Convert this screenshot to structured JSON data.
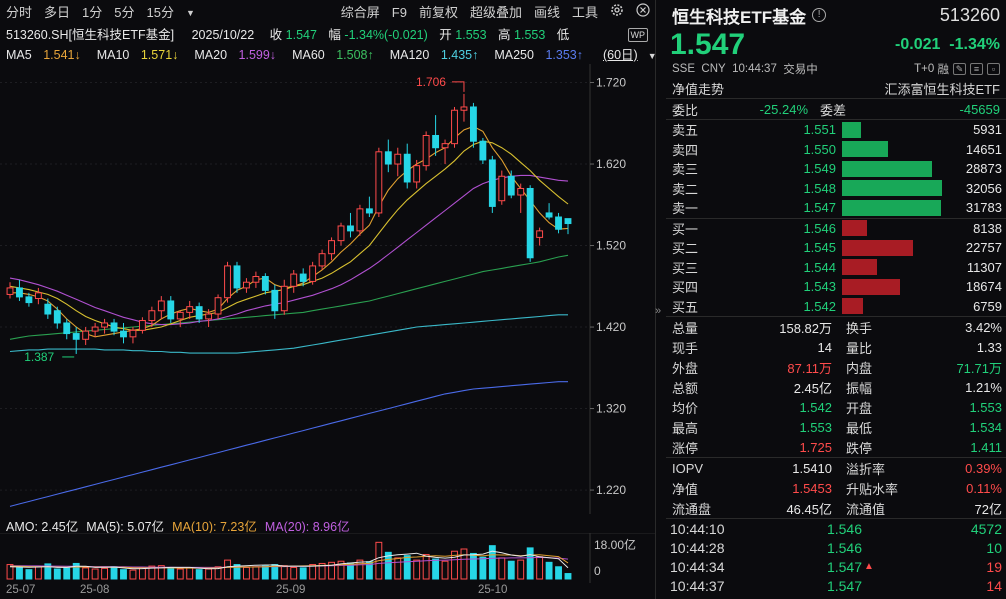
{
  "toolbar": {
    "left": [
      "分时",
      "多日",
      "1分",
      "5分",
      "15分"
    ],
    "dropdown_icon": "triangle-down",
    "right": [
      "综合屏",
      "F9",
      "前复权",
      "超级叠加",
      "画线",
      "工具"
    ],
    "icons": [
      "gear-icon",
      "close-icon"
    ]
  },
  "info": {
    "symbol": "513260.SH[恒生科技ETF基金]",
    "date": "2025/10/22",
    "close_label": "收",
    "close": "1.547",
    "range_label": "幅",
    "range": "-1.34%(-0.021)",
    "open_label": "开",
    "open": "1.553",
    "high_label": "高",
    "high": "1.553",
    "low_label": "低",
    "wp_badge": "WP"
  },
  "ma": [
    {
      "label": "MA5",
      "value": "1.541↓",
      "color": "#e8e8e8",
      "value_color": "#e8a53a"
    },
    {
      "label": "MA10",
      "value": "1.571↓",
      "color": "#e8e8e8",
      "value_color": "#e8d43a"
    },
    {
      "label": "MA20",
      "value": "1.599↓",
      "color": "#e8e8e8",
      "value_color": "#c060e0"
    },
    {
      "label": "MA60",
      "value": "1.508↑",
      "color": "#e8e8e8",
      "value_color": "#3cc060"
    },
    {
      "label": "MA120",
      "value": "1.435↑",
      "color": "#e8e8e8",
      "value_color": "#4ecfe0"
    },
    {
      "label": "MA250",
      "value": "1.353↑",
      "color": "#e8e8e8",
      "value_color": "#5a7cf0"
    }
  ],
  "period_btn": "(60日)",
  "axis": {
    "y_labels": [
      "1.720",
      "1.620",
      "1.520",
      "1.420",
      "1.320",
      "1.220"
    ],
    "y_values": [
      1.72,
      1.62,
      1.52,
      1.42,
      1.32,
      1.22
    ],
    "x_labels": [
      "25-07",
      "25-08",
      "25-09",
      "25-10"
    ],
    "vol_labels": [
      "18.00亿",
      "0"
    ]
  },
  "annotations": {
    "high": "1.706",
    "low": "1.387"
  },
  "amo": [
    {
      "label": "AMO: 2.45亿",
      "color": "#e8e8e8"
    },
    {
      "label": "MA(5): 5.07亿",
      "color": "#e8e8e8"
    },
    {
      "label": "MA(10): 7.23亿",
      "color": "#e8a53a"
    },
    {
      "label": "MA(20): 8.96亿",
      "color": "#c060e0"
    }
  ],
  "chart_data": {
    "type": "candlestick",
    "ohlc": [
      [
        1.46,
        1.475,
        1.455,
        1.468
      ],
      [
        1.468,
        1.478,
        1.452,
        1.457
      ],
      [
        1.457,
        1.462,
        1.445,
        1.45
      ],
      [
        1.455,
        1.468,
        1.448,
        1.462
      ],
      [
        1.448,
        1.455,
        1.43,
        1.436
      ],
      [
        1.44,
        1.445,
        1.418,
        1.425
      ],
      [
        1.425,
        1.43,
        1.405,
        1.412
      ],
      [
        1.412,
        1.42,
        1.387,
        1.405
      ],
      [
        1.405,
        1.42,
        1.398,
        1.415
      ],
      [
        1.415,
        1.425,
        1.408,
        1.42
      ],
      [
        1.42,
        1.43,
        1.412,
        1.425
      ],
      [
        1.425,
        1.43,
        1.41,
        1.415
      ],
      [
        1.415,
        1.425,
        1.4,
        1.408
      ],
      [
        1.408,
        1.42,
        1.4,
        1.416
      ],
      [
        1.416,
        1.432,
        1.412,
        1.428
      ],
      [
        1.428,
        1.445,
        1.42,
        1.44
      ],
      [
        1.44,
        1.458,
        1.43,
        1.452
      ],
      [
        1.452,
        1.458,
        1.425,
        1.43
      ],
      [
        1.43,
        1.44,
        1.42,
        1.438
      ],
      [
        1.438,
        1.452,
        1.43,
        1.445
      ],
      [
        1.445,
        1.45,
        1.425,
        1.43
      ],
      [
        1.43,
        1.442,
        1.42,
        1.436
      ],
      [
        1.436,
        1.46,
        1.43,
        1.456
      ],
      [
        1.456,
        1.5,
        1.45,
        1.495
      ],
      [
        1.495,
        1.5,
        1.462,
        1.468
      ],
      [
        1.468,
        1.48,
        1.462,
        1.475
      ],
      [
        1.475,
        1.488,
        1.468,
        1.482
      ],
      [
        1.482,
        1.486,
        1.46,
        1.465
      ],
      [
        1.465,
        1.472,
        1.43,
        1.44
      ],
      [
        1.44,
        1.478,
        1.435,
        1.47
      ],
      [
        1.47,
        1.49,
        1.462,
        1.485
      ],
      [
        1.485,
        1.492,
        1.47,
        1.476
      ],
      [
        1.476,
        1.5,
        1.472,
        1.495
      ],
      [
        1.495,
        1.515,
        1.49,
        1.51
      ],
      [
        1.51,
        1.53,
        1.502,
        1.526
      ],
      [
        1.526,
        1.548,
        1.52,
        1.544
      ],
      [
        1.544,
        1.56,
        1.53,
        1.538
      ],
      [
        1.538,
        1.57,
        1.532,
        1.565
      ],
      [
        1.565,
        1.58,
        1.555,
        1.56
      ],
      [
        1.56,
        1.64,
        1.555,
        1.635
      ],
      [
        1.635,
        1.65,
        1.61,
        1.62
      ],
      [
        1.62,
        1.64,
        1.605,
        1.632
      ],
      [
        1.632,
        1.645,
        1.59,
        1.598
      ],
      [
        1.598,
        1.625,
        1.59,
        1.618
      ],
      [
        1.618,
        1.66,
        1.612,
        1.655
      ],
      [
        1.655,
        1.68,
        1.63,
        1.64
      ],
      [
        1.64,
        1.65,
        1.62,
        1.645
      ],
      [
        1.645,
        1.69,
        1.64,
        1.686
      ],
      [
        1.686,
        1.706,
        1.672,
        1.69
      ],
      [
        1.69,
        1.695,
        1.64,
        1.648
      ],
      [
        1.648,
        1.652,
        1.62,
        1.625
      ],
      [
        1.625,
        1.63,
        1.56,
        1.568
      ],
      [
        1.575,
        1.612,
        1.57,
        1.605
      ],
      [
        1.605,
        1.612,
        1.578,
        1.582
      ],
      [
        1.582,
        1.596,
        1.56,
        1.59
      ],
      [
        1.59,
        1.594,
        1.5,
        1.505
      ],
      [
        1.53,
        1.542,
        1.52,
        1.538
      ],
      [
        1.56,
        1.572,
        1.552,
        1.555
      ],
      [
        1.555,
        1.56,
        1.535,
        1.54
      ],
      [
        1.553,
        1.553,
        1.534,
        1.547
      ]
    ],
    "ma5": [
      1.462,
      1.462,
      1.46,
      1.457,
      1.452,
      1.442,
      1.43,
      1.42,
      1.412,
      1.408,
      1.41,
      1.412,
      1.414,
      1.416,
      1.418,
      1.422,
      1.43,
      1.436,
      1.44,
      1.443,
      1.44,
      1.438,
      1.442,
      1.455,
      1.465,
      1.47,
      1.478,
      1.48,
      1.472,
      1.468,
      1.47,
      1.474,
      1.482,
      1.49,
      1.5,
      1.512,
      1.522,
      1.534,
      1.545,
      1.568,
      1.588,
      1.602,
      1.612,
      1.62,
      1.626,
      1.634,
      1.64,
      1.652,
      1.662,
      1.666,
      1.66,
      1.64,
      1.625,
      1.605,
      1.59,
      1.575,
      1.56,
      1.548,
      1.54,
      1.541
    ],
    "ma10": [
      1.47,
      1.468,
      1.466,
      1.463,
      1.46,
      1.455,
      1.448,
      1.44,
      1.433,
      1.428,
      1.424,
      1.42,
      1.418,
      1.416,
      1.416,
      1.418,
      1.42,
      1.424,
      1.428,
      1.432,
      1.434,
      1.436,
      1.438,
      1.444,
      1.45,
      1.454,
      1.458,
      1.462,
      1.464,
      1.466,
      1.47,
      1.472,
      1.476,
      1.48,
      1.486,
      1.493,
      1.5,
      1.51,
      1.52,
      1.535,
      1.55,
      1.564,
      1.576,
      1.586,
      1.596,
      1.605,
      1.614,
      1.624,
      1.636,
      1.644,
      1.648,
      1.646,
      1.64,
      1.632,
      1.622,
      1.612,
      1.6,
      1.59,
      1.58,
      1.571
    ],
    "ma20": [
      1.48,
      1.478,
      1.475,
      1.472,
      1.468,
      1.464,
      1.459,
      1.454,
      1.449,
      1.444,
      1.44,
      1.436,
      1.432,
      1.429,
      1.426,
      1.424,
      1.423,
      1.423,
      1.424,
      1.425,
      1.427,
      1.428,
      1.43,
      1.433,
      1.436,
      1.44,
      1.443,
      1.446,
      1.448,
      1.45,
      1.453,
      1.456,
      1.459,
      1.463,
      1.467,
      1.472,
      1.478,
      1.485,
      1.492,
      1.5,
      1.509,
      1.518,
      1.527,
      1.536,
      1.545,
      1.554,
      1.563,
      1.572,
      1.581,
      1.59,
      1.596,
      1.6,
      1.603,
      1.605,
      1.606,
      1.606,
      1.604,
      1.602,
      1.6,
      1.599
    ],
    "ma60": [
      1.405,
      1.407,
      1.409,
      1.41,
      1.411,
      1.412,
      1.413,
      1.414,
      1.415,
      1.416,
      1.417,
      1.418,
      1.419,
      1.42,
      1.421,
      1.422,
      1.423,
      1.424,
      1.425,
      1.426,
      1.427,
      1.428,
      1.429,
      1.43,
      1.431,
      1.432,
      1.433,
      1.434,
      1.435,
      1.436,
      1.437,
      1.438,
      1.44,
      1.442,
      1.444,
      1.446,
      1.448,
      1.45,
      1.452,
      1.455,
      1.458,
      1.461,
      1.464,
      1.467,
      1.47,
      1.473,
      1.476,
      1.479,
      1.482,
      1.485,
      1.488,
      1.49,
      1.492,
      1.494,
      1.496,
      1.498,
      1.5,
      1.503,
      1.506,
      1.508
    ],
    "ma120": [
      1.39,
      1.391,
      1.392,
      1.392,
      1.393,
      1.393,
      1.393,
      1.393,
      1.393,
      1.393,
      1.392,
      1.392,
      1.392,
      1.391,
      1.391,
      1.39,
      1.39,
      1.389,
      1.389,
      1.388,
      1.388,
      1.388,
      1.388,
      1.388,
      1.388,
      1.389,
      1.39,
      1.391,
      1.392,
      1.393,
      1.394,
      1.396,
      1.398,
      1.4,
      1.402,
      1.404,
      1.406,
      1.408,
      1.41,
      1.412,
      1.414,
      1.416,
      1.418,
      1.42,
      1.421,
      1.422,
      1.423,
      1.424,
      1.425,
      1.426,
      1.427,
      1.428,
      1.429,
      1.43,
      1.431,
      1.432,
      1.433,
      1.434,
      1.435,
      1.435
    ],
    "ma250": [
      1.2,
      1.203,
      1.206,
      1.209,
      1.212,
      1.215,
      1.218,
      1.221,
      1.224,
      1.227,
      1.23,
      1.233,
      1.236,
      1.239,
      1.242,
      1.245,
      1.248,
      1.251,
      1.254,
      1.257,
      1.26,
      1.263,
      1.266,
      1.269,
      1.272,
      1.275,
      1.278,
      1.281,
      1.284,
      1.287,
      1.29,
      1.293,
      1.296,
      1.299,
      1.302,
      1.305,
      1.308,
      1.311,
      1.314,
      1.317,
      1.32,
      1.323,
      1.326,
      1.329,
      1.332,
      1.335,
      1.338,
      1.34,
      1.342,
      1.344,
      1.345,
      1.346,
      1.347,
      1.348,
      1.349,
      1.35,
      1.351,
      1.352,
      1.353,
      1.353
    ],
    "volume": [
      6.5,
      5.0,
      4.2,
      5.5,
      6.8,
      4.5,
      5.2,
      7.0,
      5.0,
      4.5,
      4.8,
      5.5,
      4.2,
      4.0,
      5.2,
      5.8,
      6.0,
      4.8,
      4.5,
      5.0,
      4.2,
      4.5,
      5.5,
      8.5,
      6.5,
      5.2,
      5.5,
      5.8,
      6.5,
      6.0,
      5.2,
      5.0,
      6.5,
      7.0,
      7.5,
      8.0,
      7.2,
      8.5,
      7.8,
      16.5,
      12.0,
      9.5,
      10.5,
      8.5,
      11.0,
      9.0,
      8.0,
      12.5,
      13.5,
      11.5,
      9.8,
      15.0,
      9.5,
      8.0,
      8.5,
      14.0,
      10.0,
      7.5,
      5.5,
      2.45
    ],
    "vol_ma5": [
      5.5,
      5.4,
      5.3,
      5.4,
      5.6,
      5.2,
      5.2,
      5.7,
      5.7,
      5.2,
      5.3,
      5.4,
      5.0,
      4.6,
      4.7,
      4.9,
      5.0,
      5.2,
      5.2,
      5.2,
      4.9,
      4.6,
      4.7,
      5.5,
      5.8,
      6.0,
      6.2,
      6.3,
      6.3,
      5.8,
      5.8,
      5.7,
      5.8,
      6.0,
      6.2,
      6.8,
      7.2,
      7.6,
      7.8,
      9.6,
      10.4,
      10.9,
      11.2,
      11.6,
      10.3,
      9.7,
      9.4,
      9.8,
      10.8,
      10.9,
      11.2,
      12.5,
      11.8,
      10.8,
      10.2,
      11.0,
      10.0,
      9.6,
      9.1,
      5.07
    ],
    "vol_ma10": [
      5.8,
      5.7,
      5.6,
      5.5,
      5.5,
      5.4,
      5.3,
      5.4,
      5.4,
      5.4,
      5.3,
      5.3,
      5.3,
      5.1,
      5.0,
      5.0,
      5.0,
      5.0,
      4.9,
      4.9,
      4.9,
      4.9,
      5.0,
      5.2,
      5.3,
      5.4,
      5.4,
      5.5,
      5.7,
      5.7,
      5.8,
      5.9,
      6.0,
      6.1,
      6.2,
      6.4,
      6.6,
      6.9,
      7.0,
      8.3,
      8.8,
      9.2,
      9.7,
      9.9,
      10.2,
      10.5,
      10.2,
      10.6,
      10.9,
      10.7,
      10.4,
      10.9,
      10.8,
      10.8,
      10.5,
      10.8,
      10.9,
      10.5,
      10.1,
      7.23
    ],
    "vol_ma20": [
      6.0,
      6.0,
      5.9,
      5.9,
      5.8,
      5.8,
      5.7,
      5.7,
      5.6,
      5.6,
      5.6,
      5.5,
      5.5,
      5.4,
      5.4,
      5.3,
      5.3,
      5.3,
      5.2,
      5.2,
      5.2,
      5.2,
      5.2,
      5.3,
      5.4,
      5.4,
      5.5,
      5.5,
      5.6,
      5.6,
      5.7,
      5.7,
      5.8,
      5.9,
      6.0,
      6.1,
      6.2,
      6.4,
      6.5,
      7.0,
      7.3,
      7.5,
      7.8,
      8.0,
      8.2,
      8.4,
      8.5,
      8.7,
      8.9,
      9.0,
      9.1,
      9.3,
      9.4,
      9.5,
      9.5,
      9.6,
      9.7,
      9.6,
      9.4,
      8.96
    ]
  },
  "right": {
    "name": "恒生科技ETF基金",
    "info_icon": "info-circle-icon",
    "code": "513260",
    "price": "1.547",
    "change": "-0.021",
    "change_pct": "-1.34%",
    "exch": "SSE",
    "currency": "CNY",
    "time": "10:44:37",
    "status": "交易中",
    "t0": "T+0",
    "rong": "融",
    "nav_trend": "净值走势",
    "fund_company": "汇添富恒生科技ETF",
    "weibi_label": "委比",
    "weibi": "-25.24%",
    "weicha_label": "委差",
    "weicha": "-45659",
    "asks": [
      {
        "label": "卖五",
        "price": "1.551",
        "vol": "5931",
        "fill": 0.19
      },
      {
        "label": "卖四",
        "price": "1.550",
        "vol": "14651",
        "fill": 0.46
      },
      {
        "label": "卖三",
        "price": "1.549",
        "vol": "28873",
        "fill": 0.9
      },
      {
        "label": "卖二",
        "price": "1.548",
        "vol": "32056",
        "fill": 1.0
      },
      {
        "label": "卖一",
        "price": "1.547",
        "vol": "31783",
        "fill": 0.99
      }
    ],
    "bids": [
      {
        "label": "买一",
        "price": "1.546",
        "vol": "8138",
        "fill": 0.25
      },
      {
        "label": "买二",
        "price": "1.545",
        "vol": "22757",
        "fill": 0.71
      },
      {
        "label": "买三",
        "price": "1.544",
        "vol": "11307",
        "fill": 0.35
      },
      {
        "label": "买四",
        "price": "1.543",
        "vol": "18674",
        "fill": 0.58
      },
      {
        "label": "买五",
        "price": "1.542",
        "vol": "6759",
        "fill": 0.21
      }
    ],
    "stats": [
      {
        "k": "总量",
        "v": "158.82万",
        "vc": "white",
        "k2": "换手",
        "v2": "3.42%",
        "v2c": "white"
      },
      {
        "k": "现手",
        "v": "14",
        "vc": "white",
        "k2": "量比",
        "v2": "1.33",
        "v2c": "white"
      },
      {
        "k": "外盘",
        "v": "87.11万",
        "vc": "up",
        "k2": "内盘",
        "v2": "71.71万",
        "v2c": "down"
      },
      {
        "k": "总额",
        "v": "2.45亿",
        "vc": "white",
        "k2": "振幅",
        "v2": "1.21%",
        "v2c": "white"
      },
      {
        "k": "均价",
        "v": "1.542",
        "vc": "down",
        "k2": "开盘",
        "v2": "1.553",
        "v2c": "down"
      },
      {
        "k": "最高",
        "v": "1.553",
        "vc": "down",
        "k2": "最低",
        "v2": "1.534",
        "v2c": "down"
      },
      {
        "k": "涨停",
        "v": "1.725",
        "vc": "up",
        "k2": "跌停",
        "v2": "1.411",
        "v2c": "down"
      }
    ],
    "stats2": [
      {
        "k": "IOPV",
        "v": "1.5410",
        "vc": "white",
        "k2": "溢折率",
        "v2": "0.39%",
        "v2c": "up"
      },
      {
        "k": "净值",
        "v": "1.5453",
        "vc": "up",
        "k2": "升贴水率",
        "v2": "0.11%",
        "v2c": "up"
      },
      {
        "k": "流通盘",
        "v": "46.45亿",
        "vc": "white",
        "k2": "流通值",
        "v2": "72亿",
        "v2c": "white"
      }
    ],
    "ticks": [
      {
        "t": "10:44:10",
        "p": "1.546",
        "arrow": "",
        "v": "4572",
        "vc": "down"
      },
      {
        "t": "10:44:28",
        "p": "1.546",
        "arrow": "",
        "v": "10",
        "vc": "down"
      },
      {
        "t": "10:44:34",
        "p": "1.547",
        "arrow": "▲",
        "v": "19",
        "vc": "up"
      },
      {
        "t": "10:44:37",
        "p": "1.547",
        "arrow": "",
        "v": "14",
        "vc": "up"
      }
    ]
  },
  "collapse_icon": "double-chevron-right-icon"
}
